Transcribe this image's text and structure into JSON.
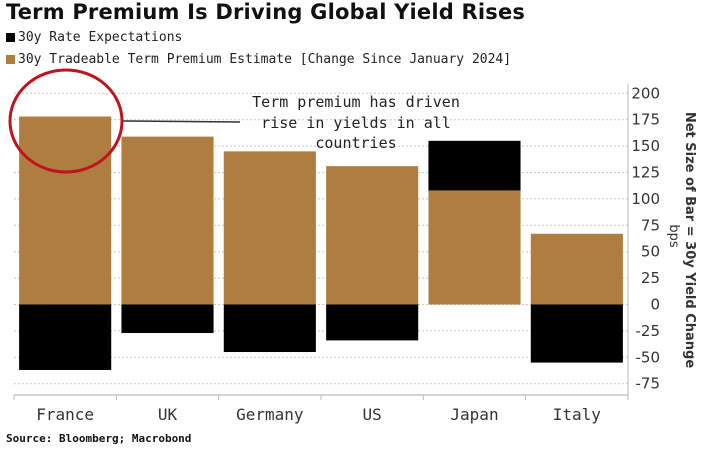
{
  "chart_data": {
    "type": "bar",
    "stacked": true,
    "title": "Term Premium Is Driving Global Yield Rises",
    "categories": [
      "France",
      "UK",
      "Germany",
      "US",
      "Japan",
      "Italy"
    ],
    "series": [
      {
        "name": "30y Rate Expectations",
        "color": "#000000",
        "values": [
          -62,
          -27,
          -45,
          -34,
          47,
          -55
        ]
      },
      {
        "name": "30y Tradeable Term Premium Estimate [Change Since January 2024]",
        "color": "#B07D40",
        "values": [
          178,
          159,
          145,
          131,
          108,
          67
        ]
      }
    ],
    "ylabel": "Net Size of Bar = 30y Yield Change",
    "yunit": "bps",
    "ylim": [
      -75,
      200
    ],
    "yticks": [
      200,
      175,
      150,
      125,
      100,
      75,
      50,
      25,
      0,
      -25,
      -50,
      -75
    ],
    "yaxis_side": "right",
    "grid": true,
    "legend_position": "top-left",
    "annotation": {
      "lines": [
        "Term premium has driven",
        "rise in yields in all",
        "countries"
      ],
      "target_category": "France",
      "highlight": "red circle around France bar top"
    },
    "source": "Source: Bloomberg; Macrobond"
  }
}
